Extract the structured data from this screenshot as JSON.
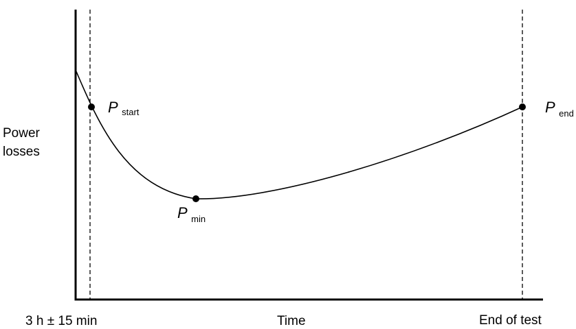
{
  "diagram": {
    "y_axis_label_line1": "Power",
    "y_axis_label_line2": "losses",
    "x_axis_label": "Time",
    "x_tick_start": "3 h ± 15 min",
    "x_tick_end": "End of test",
    "points": {
      "start": {
        "symbol": "P",
        "subscript": "start"
      },
      "min": {
        "symbol": "P",
        "subscript": "min"
      },
      "end": {
        "symbol": "P",
        "subscript": "end"
      }
    },
    "colors": {
      "stroke": "#000000",
      "background": "#ffffff"
    }
  }
}
